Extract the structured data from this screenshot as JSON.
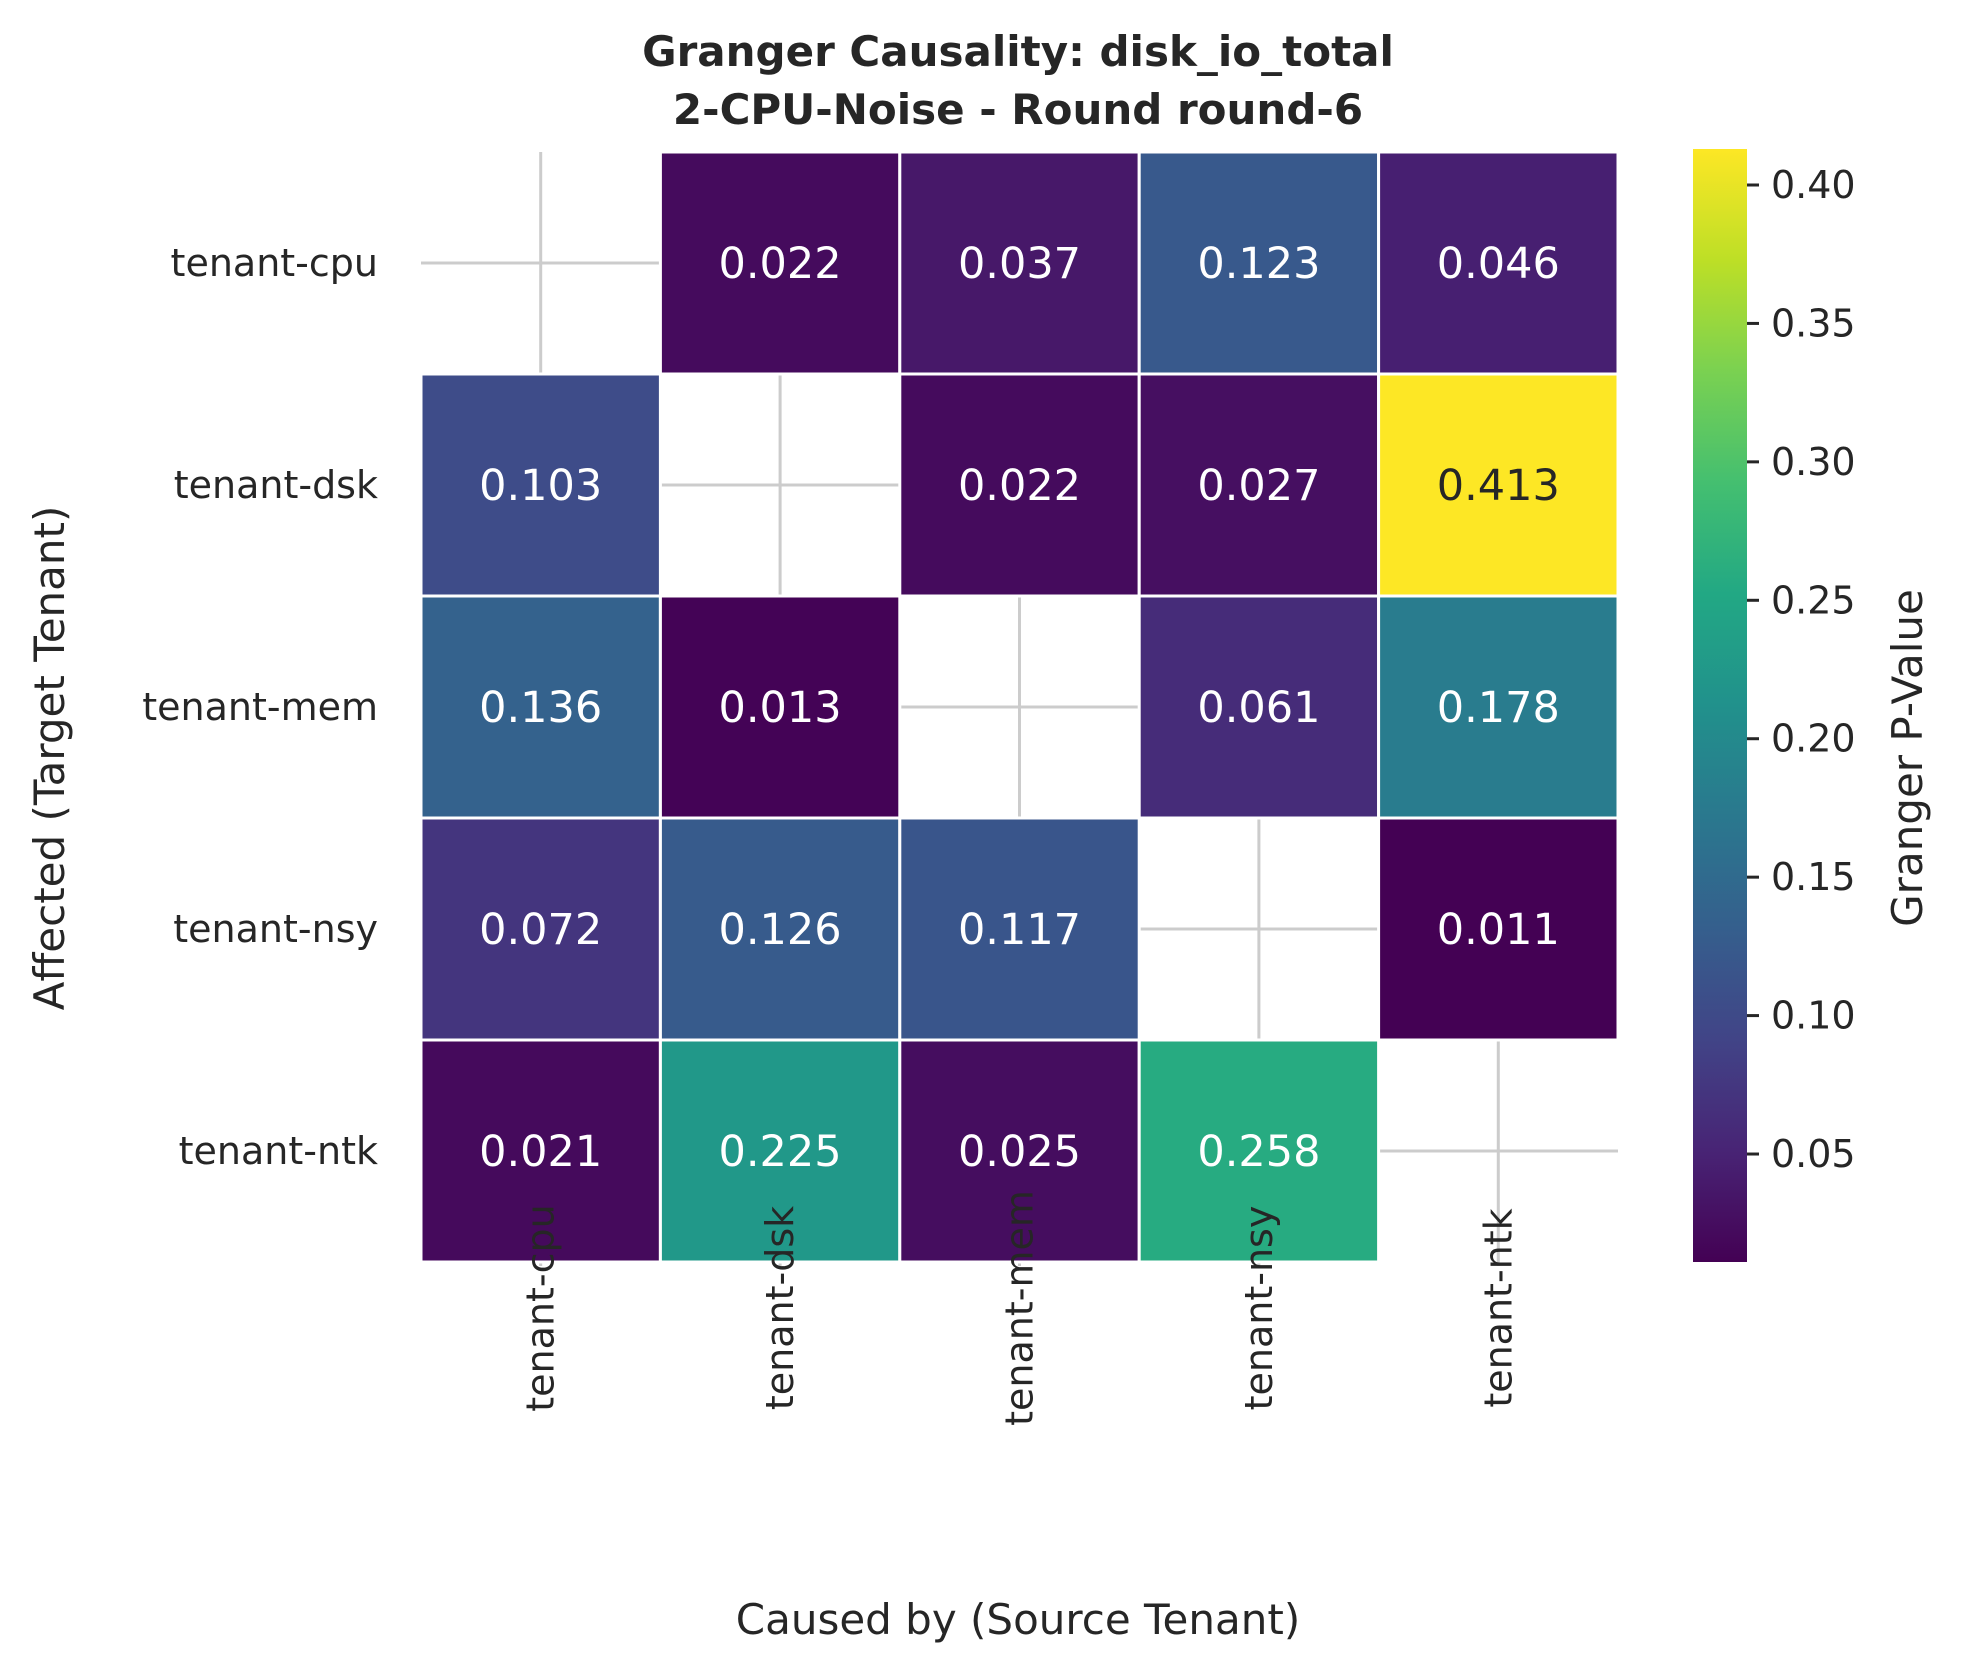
{
  "chart_data": {
    "type": "heatmap",
    "title": "Granger Causality: disk_io_total",
    "subtitle": "2-CPU-Noise - Round round-6",
    "xlabel": "Caused by (Source Tenant)",
    "ylabel": "Affected (Target Tenant)",
    "x_categories": [
      "tenant-cpu",
      "tenant-dsk",
      "tenant-mem",
      "tenant-nsy",
      "tenant-ntk"
    ],
    "y_categories": [
      "tenant-cpu",
      "tenant-dsk",
      "tenant-mem",
      "tenant-nsy",
      "tenant-ntk"
    ],
    "values": [
      [
        null,
        0.022,
        0.037,
        0.123,
        0.046
      ],
      [
        0.103,
        null,
        0.022,
        0.027,
        0.413
      ],
      [
        0.136,
        0.013,
        null,
        0.061,
        0.178
      ],
      [
        0.072,
        0.126,
        0.117,
        null,
        0.011
      ],
      [
        0.021,
        0.225,
        0.025,
        0.258,
        null
      ]
    ],
    "value_labels": [
      [
        "",
        "0.022",
        "0.037",
        "0.123",
        "0.046"
      ],
      [
        "0.103",
        "",
        "0.022",
        "0.027",
        "0.413"
      ],
      [
        "0.136",
        "0.013",
        "",
        "0.061",
        "0.178"
      ],
      [
        "0.072",
        "0.126",
        "0.117",
        "",
        "0.011"
      ],
      [
        "0.021",
        "0.225",
        "0.025",
        "0.258",
        ""
      ]
    ],
    "colormap": "viridis",
    "colorbar": {
      "label": "Granger P-Value",
      "range": [
        0.011,
        0.413
      ],
      "ticks": [
        "0.05",
        "0.10",
        "0.15",
        "0.20",
        "0.25",
        "0.30",
        "0.35",
        "0.40"
      ]
    },
    "grid": true,
    "annotations": "values shown in cells; diagonal cells masked"
  },
  "colors": {
    "text": "#262626",
    "cell_border": "#ffffff",
    "grid": "#cccccc",
    "label_on_dark": "#ffffff",
    "label_on_light": "#262626"
  }
}
